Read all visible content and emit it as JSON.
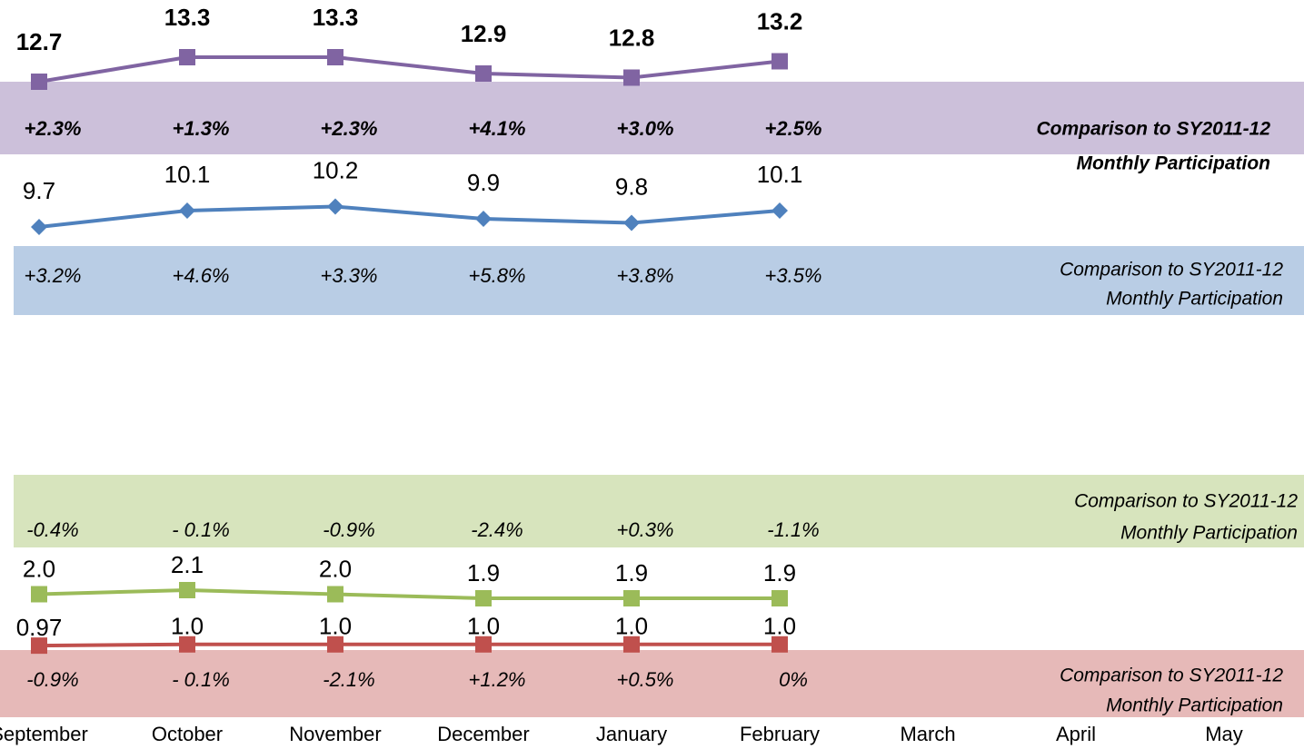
{
  "chart_data": {
    "type": "line",
    "categories": [
      "September",
      "October",
      "November",
      "December",
      "January",
      "February",
      "March",
      "April",
      "May"
    ],
    "band_label": [
      "Comparison to SY2011-12",
      "Monthly Participation"
    ],
    "series": [
      {
        "color": "#8064a2",
        "band_color": "#ccc0da",
        "marker": "square",
        "values": [
          12.7,
          13.3,
          13.3,
          12.9,
          12.8,
          13.2,
          null,
          null,
          null
        ],
        "value_labels": [
          "12.7",
          "13.3",
          "13.3",
          "12.9",
          "12.8",
          "13.2",
          null,
          null,
          null
        ],
        "comparisons": [
          "+2.3%",
          "+1.3%",
          "+2.3%",
          "+4.1%",
          "+3.0%",
          "+2.5%"
        ]
      },
      {
        "color": "#4f81bd",
        "band_color": "#b9cde5",
        "marker": "diamond",
        "values": [
          9.7,
          10.1,
          10.2,
          9.9,
          9.8,
          10.1,
          null,
          null,
          null
        ],
        "value_labels": [
          "9.7",
          "10.1",
          "10.2",
          "9.9",
          "9.8",
          "10.1",
          null,
          null,
          null
        ],
        "comparisons": [
          "+3.2%",
          "+4.6%",
          "+3.3%",
          "+5.8%",
          "+3.8%",
          "+3.5%"
        ]
      },
      {
        "color": "#9bbb59",
        "band_color": "#d7e4bd",
        "marker": "square",
        "values": [
          2.0,
          2.1,
          2.0,
          1.9,
          1.9,
          1.9,
          null,
          null,
          null
        ],
        "value_labels": [
          "2.0",
          "2.1",
          "2.0",
          "1.9",
          "1.9",
          "1.9",
          null,
          null,
          null
        ],
        "comparisons": [
          "-0.4%",
          "- 0.1%",
          "-0.9%",
          "-2.4%",
          "+0.3%",
          "-1.1%"
        ]
      },
      {
        "color": "#c0504d",
        "band_color": "#e6b9b8",
        "marker": "square",
        "values": [
          0.97,
          1.0,
          1.0,
          1.0,
          1.0,
          1.0,
          null,
          null,
          null
        ],
        "value_labels": [
          "0.97",
          "1.0",
          "1.0",
          "1.0",
          "1.0",
          "1.0",
          null,
          null,
          null
        ],
        "comparisons": [
          "-0.9%",
          "- 0.1%",
          "-2.1%",
          "+1.2%",
          "+0.5%",
          "0%"
        ]
      }
    ]
  }
}
